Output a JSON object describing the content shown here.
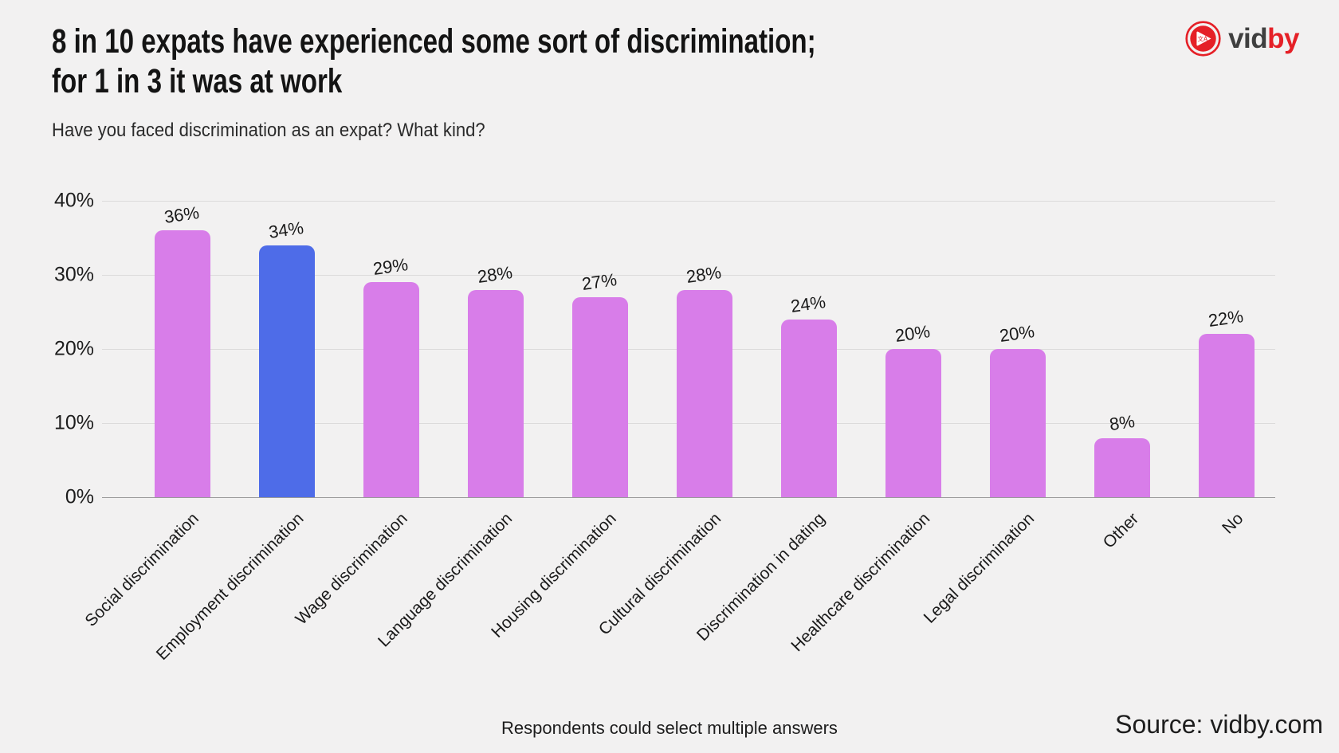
{
  "page": {
    "background": "#f2f1f1"
  },
  "header": {
    "title_line1": "8 in 10 expats have experienced some sort of discrimination;",
    "title_line2": "for 1 in 3 it was at work",
    "subtitle": "Have you faced discrimination as an expat? What kind?"
  },
  "logo": {
    "text_dark": "vid",
    "text_red": "by",
    "icon_glyph": "文A",
    "red": "#e52027",
    "dark": "#3f3f3f"
  },
  "chart_data": {
    "type": "bar",
    "title": "Have you faced discrimination as an expat? What kind?",
    "categories": [
      "Social discrimination",
      "Employment discrimination",
      "Wage discrimination",
      "Language discrimination",
      "Housing discrimination",
      "Cultural discrimination",
      "Discrimination in dating",
      "Healthcare discrimination",
      "Legal discrimination",
      "Other",
      "No"
    ],
    "values": [
      36,
      34,
      29,
      28,
      27,
      28,
      24,
      20,
      20,
      8,
      22
    ],
    "value_labels": [
      "36%",
      "34%",
      "29%",
      "28%",
      "27%",
      "28%",
      "24%",
      "20%",
      "20%",
      "8%",
      "22%"
    ],
    "highlight_index": 1,
    "bar_color": "#d87de9",
    "highlight_color": "#4e6ce8",
    "y_ticks": [
      "40%",
      "30%",
      "20%",
      "10%",
      "0%"
    ],
    "ylim": [
      0,
      40
    ],
    "grid": true,
    "legend": null,
    "xlabel": "",
    "ylabel": ""
  },
  "footer": {
    "note": "Respondents could select multiple answers",
    "source": "Source: vidby.com"
  }
}
